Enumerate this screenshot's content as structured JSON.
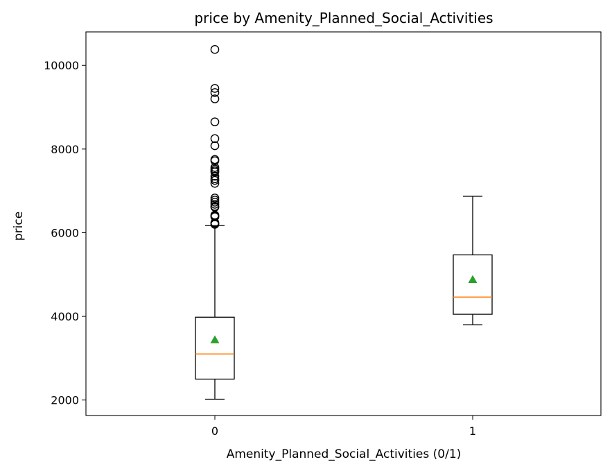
{
  "chart_data": {
    "type": "box",
    "title": "price by Amenity_Planned_Social_Activities",
    "xlabel": "Amenity_Planned_Social_Activities (0/1)",
    "ylabel": "price",
    "categories": [
      "0",
      "1"
    ],
    "ylim": [
      1630,
      10800
    ],
    "yticks": [
      2000,
      4000,
      6000,
      8000,
      10000
    ],
    "boxes": [
      {
        "category": "0",
        "whisker_low": 2020,
        "q1": 2500,
        "median": 3100,
        "q3": 3980,
        "whisker_high": 6170,
        "mean": 3440,
        "outliers": [
          10380,
          9450,
          9350,
          9200,
          8650,
          8250,
          8080,
          7750,
          7720,
          7560,
          7520,
          7480,
          7450,
          7350,
          7290,
          7250,
          7180,
          6830,
          6780,
          6730,
          6680,
          6630,
          6610,
          6420,
          6400,
          6380,
          6240,
          6220,
          6200
        ]
      },
      {
        "category": "1",
        "whisker_low": 3800,
        "q1": 4050,
        "median": 4460,
        "q3": 5470,
        "whisker_high": 6870,
        "mean": 4880,
        "outliers": []
      }
    ],
    "colors": {
      "box": "#000000",
      "median": "#ff7f0e",
      "mean": "#2ca02c",
      "outlier": "#000000"
    }
  }
}
